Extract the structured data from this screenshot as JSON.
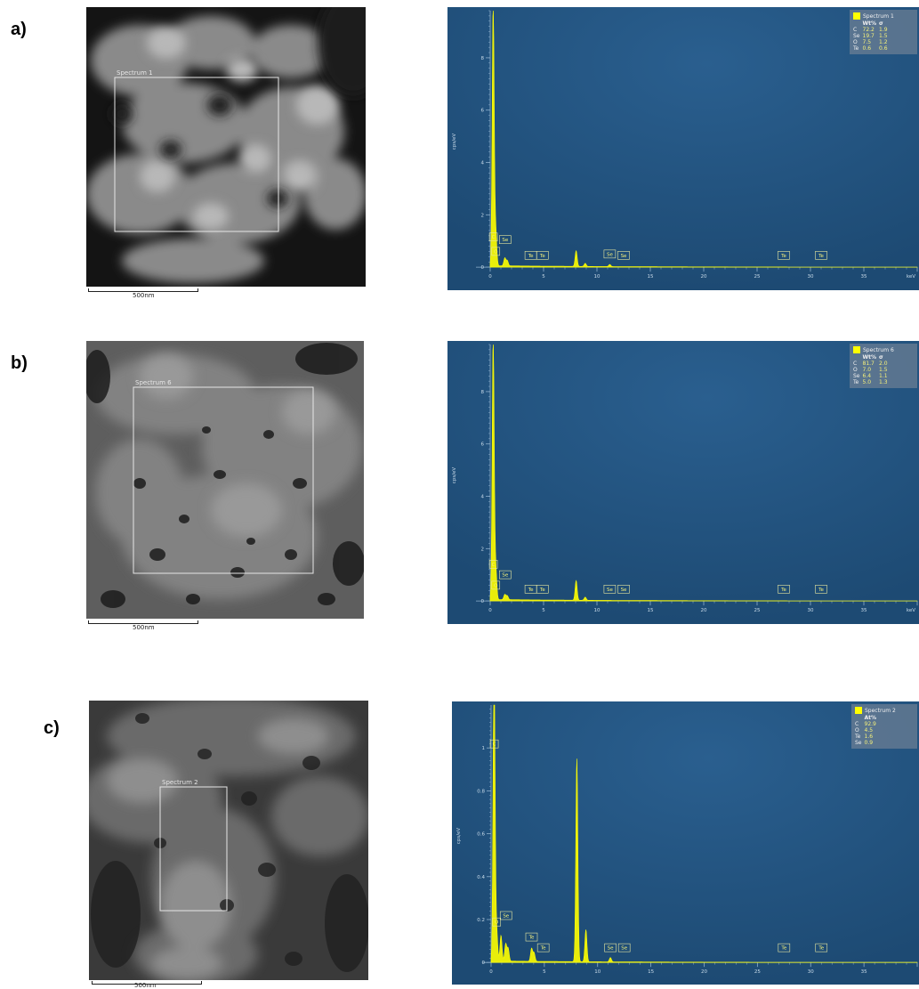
{
  "panel_labels": [
    "a)",
    "b)",
    "c)"
  ],
  "panels": [
    {
      "label": "a)",
      "sem": {
        "roi_label": "Spectrum 1",
        "scale_text": "500nm"
      },
      "legend": {
        "title": "Spectrum 1",
        "columns": [
          "Wt%",
          "σ"
        ],
        "rows": [
          {
            "element": "C",
            "values": [
              "72.2",
              "1.9"
            ]
          },
          {
            "element": "Se",
            "values": [
              "19.7",
              "1.5"
            ]
          },
          {
            "element": "O",
            "values": [
              "7.5",
              "1.2"
            ]
          },
          {
            "element": "Te",
            "values": [
              "0.6",
              "0.6"
            ]
          }
        ]
      }
    },
    {
      "label": "b)",
      "sem": {
        "roi_label": "Spectrum 6",
        "scale_text": "500nm"
      },
      "legend": {
        "title": "Spectrum 6",
        "columns": [
          "Wt%",
          "σ"
        ],
        "rows": [
          {
            "element": "C",
            "values": [
              "81.7",
              "2.0"
            ]
          },
          {
            "element": "O",
            "values": [
              "7.0",
              "1.5"
            ]
          },
          {
            "element": "Se",
            "values": [
              "6.4",
              "1.1"
            ]
          },
          {
            "element": "Te",
            "values": [
              "5.0",
              "1.3"
            ]
          }
        ]
      }
    },
    {
      "label": "c)",
      "sem": {
        "roi_label": "Spectrum 2",
        "scale_text": "500nm"
      },
      "legend": {
        "title": "Spectrum 2",
        "columns": [
          "At%"
        ],
        "rows": [
          {
            "element": "C",
            "values": [
              "92.9"
            ]
          },
          {
            "element": "O",
            "values": [
              "4.5"
            ]
          },
          {
            "element": "Te",
            "values": [
              "1.6"
            ]
          },
          {
            "element": "Se",
            "values": [
              "0.9"
            ]
          }
        ]
      }
    }
  ],
  "colors": {
    "spectrum_bg": "#1d4a73",
    "peak": "#ffff00",
    "axis": "#8fb0cc"
  },
  "chart_data": [
    {
      "type": "line",
      "title": "Spectrum 1",
      "xlabel": "keV",
      "ylabel": "cps/eV",
      "xlim": [
        -1,
        40
      ],
      "ylim": [
        -0.2,
        9.8
      ],
      "xticks": [
        0,
        5,
        10,
        15,
        20,
        25,
        30,
        35
      ],
      "yticks": [
        0,
        2,
        4,
        6,
        8
      ],
      "peaks": [
        [
          0.28,
          10
        ],
        [
          0.52,
          1.3
        ],
        [
          1.37,
          0.3
        ],
        [
          1.6,
          0.2
        ],
        [
          8.05,
          0.6
        ],
        [
          8.9,
          0.12
        ],
        [
          11.2,
          0.08
        ]
      ],
      "peak_labels": [
        {
          "text": "C",
          "x": 0.3,
          "y": 1.0
        },
        {
          "text": "O",
          "x": 0.52,
          "y": 0.45
        },
        {
          "text": "Se",
          "x": 1.4,
          "y": 0.9
        },
        {
          "text": "Te",
          "x": 3.8,
          "y": 0.3
        },
        {
          "text": "Te",
          "x": 4.9,
          "y": 0.3
        },
        {
          "text": "Se",
          "x": 11.2,
          "y": 0.35
        },
        {
          "text": "Se",
          "x": 12.5,
          "y": 0.3
        },
        {
          "text": "Te",
          "x": 27.5,
          "y": 0.3
        },
        {
          "text": "Te",
          "x": 31.0,
          "y": 0.3
        }
      ]
    },
    {
      "type": "line",
      "title": "Spectrum 6",
      "xlabel": "keV",
      "ylabel": "cps/eV",
      "xlim": [
        -1,
        40
      ],
      "ylim": [
        -0.2,
        9.8
      ],
      "xticks": [
        0,
        5,
        10,
        15,
        20,
        25,
        30,
        35
      ],
      "yticks": [
        0,
        2,
        4,
        6,
        8
      ],
      "peaks": [
        [
          0.28,
          10
        ],
        [
          0.52,
          1.2
        ],
        [
          1.37,
          0.2
        ],
        [
          1.6,
          0.15
        ],
        [
          8.05,
          0.75
        ],
        [
          8.9,
          0.12
        ]
      ],
      "peak_labels": [
        {
          "text": "C",
          "x": 0.3,
          "y": 1.25
        },
        {
          "text": "O",
          "x": 0.52,
          "y": 0.45
        },
        {
          "text": "Se",
          "x": 1.4,
          "y": 0.85
        },
        {
          "text": "Te",
          "x": 3.8,
          "y": 0.3
        },
        {
          "text": "Te",
          "x": 4.9,
          "y": 0.3
        },
        {
          "text": "Se",
          "x": 11.2,
          "y": 0.3
        },
        {
          "text": "Se",
          "x": 12.5,
          "y": 0.3
        },
        {
          "text": "Te",
          "x": 27.5,
          "y": 0.3
        },
        {
          "text": "Te",
          "x": 31.0,
          "y": 0.3
        }
      ]
    },
    {
      "type": "line",
      "title": "Spectrum 2",
      "xlabel": "",
      "ylabel": "cps/eV",
      "xlim": [
        -0.5,
        40
      ],
      "ylim": [
        -0.02,
        1.2
      ],
      "xticks": [
        0,
        5,
        10,
        15,
        20,
        25,
        30,
        35
      ],
      "yticks": [
        0,
        0.2,
        0.4,
        0.6,
        0.8,
        1
      ],
      "peaks": [
        [
          0.28,
          1.4
        ],
        [
          0.52,
          0.14
        ],
        [
          0.93,
          0.12
        ],
        [
          1.37,
          0.08
        ],
        [
          1.6,
          0.06
        ],
        [
          3.8,
          0.06
        ],
        [
          4.03,
          0.04
        ],
        [
          8.05,
          0.95
        ],
        [
          8.9,
          0.15
        ],
        [
          11.2,
          0.02
        ]
      ],
      "peak_labels": [
        {
          "text": "C",
          "x": 0.3,
          "y": 1.0
        },
        {
          "text": "O",
          "x": 0.52,
          "y": 0.17
        },
        {
          "text": "Se",
          "x": 1.4,
          "y": 0.2
        },
        {
          "text": "Te",
          "x": 3.8,
          "y": 0.1
        },
        {
          "text": "Te",
          "x": 4.9,
          "y": 0.05
        },
        {
          "text": "Se",
          "x": 11.2,
          "y": 0.05
        },
        {
          "text": "Se",
          "x": 12.5,
          "y": 0.05
        },
        {
          "text": "Te",
          "x": 27.5,
          "y": 0.05
        },
        {
          "text": "Te",
          "x": 31.0,
          "y": 0.05
        }
      ]
    }
  ]
}
